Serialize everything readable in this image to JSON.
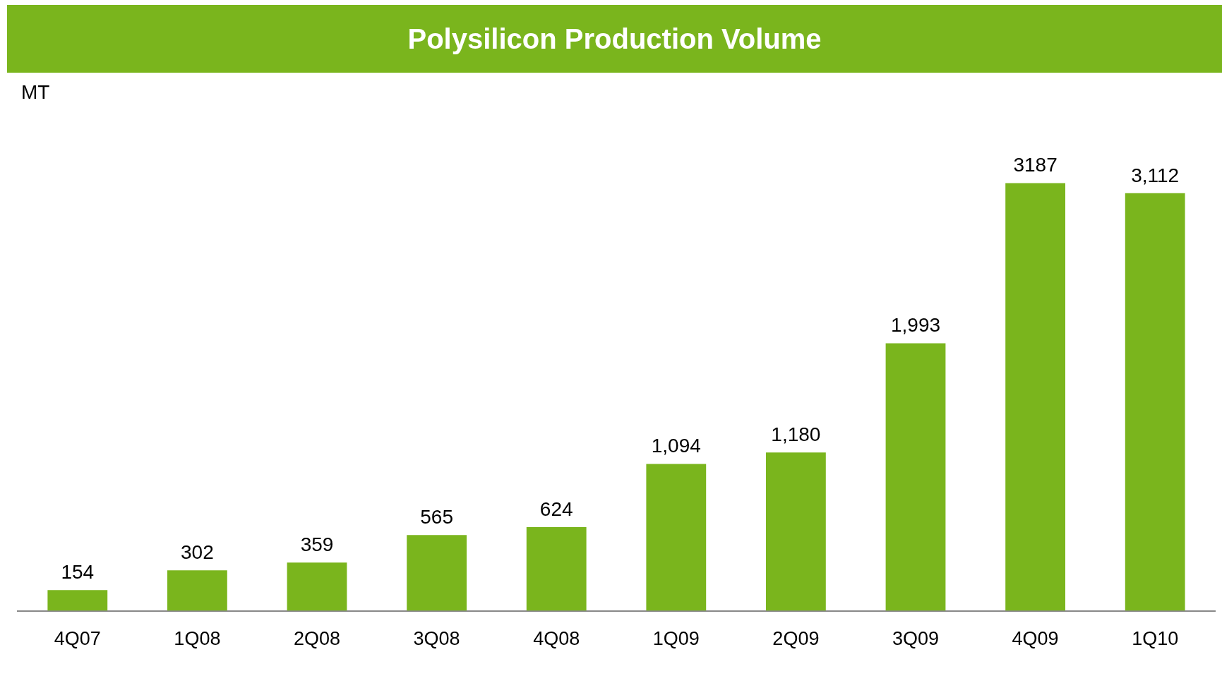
{
  "chart_data": {
    "type": "bar",
    "title": "Polysilicon Production Volume",
    "ylabel": "MT",
    "categories": [
      "4Q07",
      "1Q08",
      "2Q08",
      "3Q08",
      "4Q08",
      "1Q09",
      "2Q09",
      "3Q09",
      "4Q09",
      "1Q10"
    ],
    "values": [
      154,
      302,
      359,
      565,
      624,
      1094,
      1180,
      1993,
      3187,
      3112
    ],
    "value_labels": [
      "154",
      "302",
      "359",
      "565",
      "624",
      "1,094",
      "1,180",
      "1,993",
      "3187",
      "3,112"
    ],
    "color": "#7ab51d",
    "grid": false,
    "legend": false
  }
}
